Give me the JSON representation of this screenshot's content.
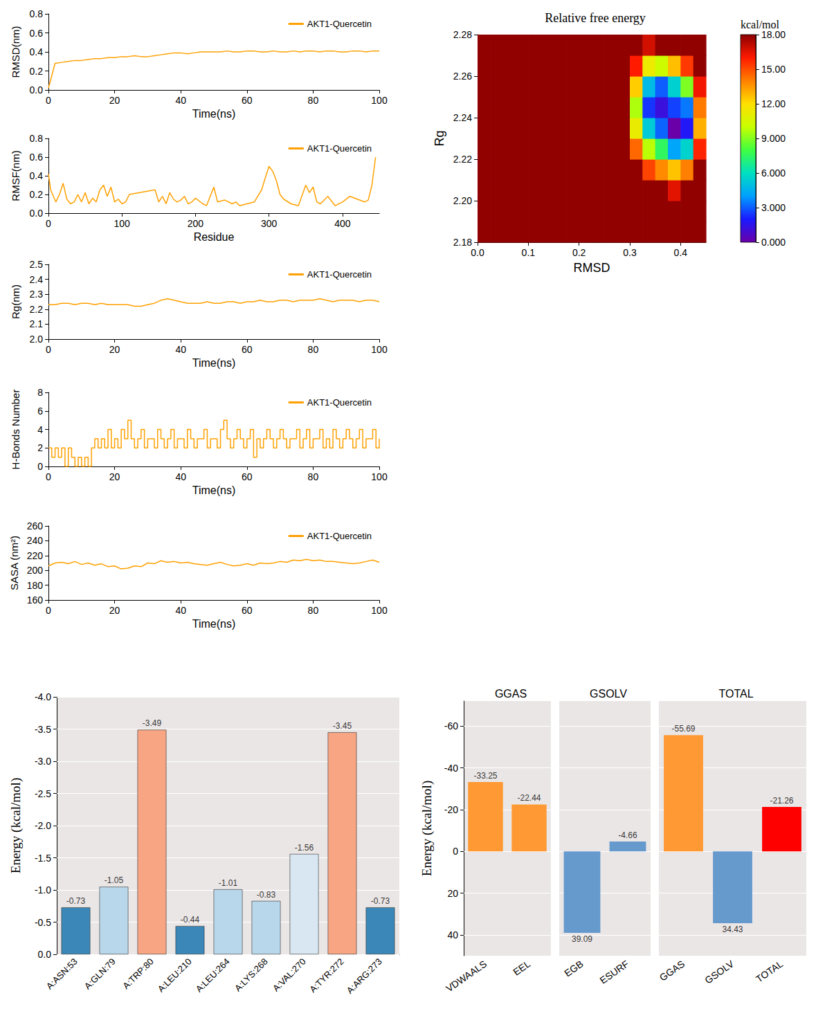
{
  "chart_data": [
    {
      "type": "line",
      "xlabel": "Time(ns)",
      "ylabel": "RMSD(nm)",
      "xlim": [
        0,
        100
      ],
      "xticks": [
        0,
        20,
        40,
        60,
        80,
        100
      ],
      "ylim": [
        0,
        0.8
      ],
      "yticks": [
        {
          "value": 0,
          "label": "0.0"
        },
        0.2,
        0.4,
        0.6,
        0.8
      ],
      "legend": "upper right",
      "x": [
        0,
        2,
        4,
        6,
        8,
        10,
        12,
        14,
        16,
        18,
        20,
        22,
        24,
        26,
        28,
        30,
        32,
        34,
        36,
        38,
        40,
        42,
        44,
        46,
        48,
        50,
        52,
        54,
        56,
        58,
        60,
        62,
        64,
        66,
        68,
        70,
        72,
        74,
        76,
        78,
        80,
        82,
        84,
        86,
        88,
        90,
        92,
        94,
        96,
        98,
        100
      ],
      "series": [
        {
          "name": "AKT1-Quercetin",
          "color": "#FFA000",
          "values": [
            0.02,
            0.28,
            0.29,
            0.3,
            0.31,
            0.31,
            0.32,
            0.33,
            0.33,
            0.34,
            0.34,
            0.35,
            0.35,
            0.36,
            0.35,
            0.35,
            0.36,
            0.37,
            0.38,
            0.39,
            0.39,
            0.38,
            0.39,
            0.4,
            0.4,
            0.4,
            0.4,
            0.41,
            0.4,
            0.4,
            0.41,
            0.41,
            0.4,
            0.4,
            0.41,
            0.4,
            0.4,
            0.41,
            0.4,
            0.41,
            0.41,
            0.4,
            0.41,
            0.41,
            0.4,
            0.4,
            0.41,
            0.41,
            0.4,
            0.41,
            0.41
          ]
        }
      ]
    },
    {
      "type": "line",
      "xlabel": "Residue",
      "ylabel": "RMSF(nm)",
      "xlim": [
        0,
        450
      ],
      "xticks": [
        0,
        100,
        200,
        300,
        400
      ],
      "ylim": [
        0,
        0.8
      ],
      "yticks": [
        {
          "value": 0,
          "label": "0.0"
        },
        0.2,
        0.4,
        0.6,
        0.8
      ],
      "legend": "upper right",
      "x": [
        0,
        3,
        10,
        15,
        20,
        25,
        30,
        35,
        40,
        45,
        50,
        55,
        60,
        65,
        70,
        75,
        80,
        85,
        90,
        95,
        100,
        105,
        110,
        145,
        150,
        155,
        160,
        165,
        170,
        175,
        180,
        185,
        190,
        195,
        200,
        210,
        215,
        225,
        230,
        240,
        250,
        255,
        260,
        270,
        280,
        290,
        295,
        300,
        305,
        310,
        315,
        320,
        330,
        340,
        350,
        355,
        360,
        365,
        370,
        380,
        390,
        400,
        410,
        420,
        430,
        435,
        440,
        445
      ],
      "series": [
        {
          "name": "AKT1-Quercetin",
          "color": "#FFA000",
          "values": [
            0.42,
            0.25,
            0.12,
            0.2,
            0.32,
            0.15,
            0.1,
            0.12,
            0.2,
            0.12,
            0.22,
            0.1,
            0.16,
            0.12,
            0.25,
            0.3,
            0.18,
            0.28,
            0.12,
            0.15,
            0.1,
            0.12,
            0.2,
            0.25,
            0.12,
            0.18,
            0.1,
            0.22,
            0.15,
            0.12,
            0.14,
            0.18,
            0.1,
            0.12,
            0.16,
            0.1,
            0.08,
            0.28,
            0.12,
            0.14,
            0.1,
            0.12,
            0.08,
            0.1,
            0.12,
            0.25,
            0.38,
            0.5,
            0.45,
            0.35,
            0.2,
            0.15,
            0.1,
            0.08,
            0.3,
            0.22,
            0.28,
            0.12,
            0.1,
            0.18,
            0.08,
            0.12,
            0.18,
            0.15,
            0.12,
            0.14,
            0.3,
            0.6
          ]
        }
      ]
    },
    {
      "type": "line",
      "xlabel": "Time(ns)",
      "ylabel": "Rg(nm)",
      "xlim": [
        0,
        100
      ],
      "xticks": [
        0,
        20,
        40,
        60,
        80,
        100
      ],
      "ylim": [
        2.0,
        2.5
      ],
      "yticks": [
        {
          "value": 2,
          "label": "2.0"
        },
        2.1,
        2.2,
        2.3,
        2.4,
        2.5
      ],
      "legend": "upper right",
      "x": [
        0,
        2,
        4,
        6,
        8,
        10,
        12,
        14,
        16,
        18,
        20,
        22,
        24,
        26,
        28,
        30,
        32,
        34,
        36,
        38,
        40,
        42,
        44,
        46,
        48,
        50,
        52,
        54,
        56,
        58,
        60,
        62,
        64,
        66,
        68,
        70,
        72,
        74,
        76,
        78,
        80,
        82,
        84,
        86,
        88,
        90,
        92,
        94,
        96,
        98,
        100
      ],
      "series": [
        {
          "name": "AKT1-Quercetin",
          "color": "#FFA000",
          "values": [
            2.23,
            2.23,
            2.24,
            2.24,
            2.23,
            2.24,
            2.24,
            2.23,
            2.24,
            2.23,
            2.23,
            2.23,
            2.23,
            2.22,
            2.22,
            2.23,
            2.24,
            2.26,
            2.27,
            2.26,
            2.25,
            2.24,
            2.24,
            2.24,
            2.25,
            2.24,
            2.24,
            2.25,
            2.25,
            2.24,
            2.25,
            2.25,
            2.26,
            2.25,
            2.25,
            2.26,
            2.26,
            2.25,
            2.26,
            2.26,
            2.26,
            2.27,
            2.26,
            2.25,
            2.26,
            2.26,
            2.26,
            2.25,
            2.26,
            2.26,
            2.25
          ]
        }
      ]
    },
    {
      "type": "line",
      "line_style": "step",
      "xlabel": "Time(ns)",
      "ylabel": "H-Bonds Number",
      "xlim": [
        0,
        100
      ],
      "xticks": [
        0,
        20,
        40,
        60,
        80,
        100
      ],
      "ylim": [
        0,
        8
      ],
      "yticks": [
        0,
        2,
        4,
        6,
        8
      ],
      "legend": "upper right",
      "x": [
        0,
        1,
        2,
        3,
        4,
        5,
        6,
        7,
        8,
        9,
        10,
        11,
        12,
        13,
        14,
        15,
        16,
        17,
        18,
        19,
        20,
        21,
        22,
        23,
        24,
        25,
        26,
        27,
        28,
        29,
        30,
        31,
        32,
        33,
        34,
        35,
        36,
        37,
        38,
        39,
        40,
        41,
        42,
        43,
        44,
        45,
        46,
        47,
        48,
        49,
        50,
        51,
        52,
        53,
        54,
        55,
        56,
        57,
        58,
        59,
        60,
        61,
        62,
        63,
        64,
        65,
        66,
        67,
        68,
        69,
        70,
        71,
        72,
        73,
        74,
        75,
        76,
        77,
        78,
        79,
        80,
        81,
        82,
        83,
        84,
        85,
        86,
        87,
        88,
        89,
        90,
        91,
        92,
        93,
        94,
        95,
        96,
        97,
        98,
        99,
        100
      ],
      "series": [
        {
          "name": "AKT1-Quercetin",
          "color": "#FFA000",
          "values": [
            2,
            1,
            2,
            1,
            2,
            0,
            2,
            1,
            0,
            1,
            0,
            1,
            0,
            2,
            3,
            2,
            3,
            2,
            4,
            2,
            3,
            2,
            4,
            3,
            5,
            3,
            2,
            3,
            4,
            2,
            3,
            3,
            2,
            4,
            3,
            2,
            3,
            4,
            2,
            3,
            3,
            2,
            4,
            3,
            2,
            3,
            3,
            4,
            2,
            3,
            3,
            2,
            4,
            5,
            3,
            2,
            3,
            4,
            3,
            2,
            3,
            4,
            1,
            3,
            2,
            3,
            4,
            3,
            2,
            3,
            4,
            3,
            2,
            3,
            3,
            4,
            2,
            3,
            4,
            2,
            3,
            3,
            4,
            2,
            3,
            2,
            4,
            3,
            2,
            3,
            4,
            3,
            2,
            3,
            4,
            2,
            3,
            3,
            4,
            2,
            3
          ]
        }
      ]
    },
    {
      "type": "line",
      "xlabel": "Time(ns)",
      "ylabel": "SASA (nm²)",
      "xlim": [
        0,
        100
      ],
      "xticks": [
        0,
        20,
        40,
        60,
        80,
        100
      ],
      "ylim": [
        160,
        260
      ],
      "yticks": [
        160,
        180,
        200,
        220,
        240,
        260
      ],
      "legend": "upper right",
      "x": [
        0,
        2,
        4,
        6,
        8,
        10,
        12,
        14,
        16,
        18,
        20,
        22,
        24,
        26,
        28,
        30,
        32,
        34,
        36,
        38,
        40,
        42,
        44,
        46,
        48,
        50,
        52,
        54,
        56,
        58,
        60,
        62,
        64,
        66,
        68,
        70,
        72,
        74,
        76,
        78,
        80,
        82,
        84,
        86,
        88,
        90,
        92,
        94,
        96,
        98,
        100
      ],
      "series": [
        {
          "name": "AKT1-Quercetin",
          "color": "#FFA000",
          "values": [
            206,
            210,
            211,
            209,
            212,
            208,
            210,
            207,
            209,
            205,
            206,
            202,
            203,
            206,
            205,
            210,
            209,
            213,
            211,
            212,
            210,
            211,
            209,
            208,
            207,
            209,
            211,
            208,
            206,
            207,
            209,
            207,
            210,
            209,
            210,
            212,
            211,
            214,
            213,
            215,
            213,
            214,
            212,
            212,
            211,
            210,
            209,
            210,
            212,
            214,
            211
          ]
        }
      ]
    },
    {
      "type": "heatmap",
      "title": "Relative free energy",
      "xlabel": "RMSD",
      "ylabel": "Rg",
      "xlim": [
        0,
        0.45
      ],
      "xticks": [
        {
          "value": 0,
          "label": "0.0"
        },
        0.1,
        0.2,
        0.3,
        0.4
      ],
      "ylim": [
        2.18,
        2.28
      ],
      "yticks": [
        2.18,
        {
          "value": 2.2,
          "label": "2.20"
        },
        2.22,
        2.24,
        2.26,
        2.28
      ],
      "x_bins": [
        0,
        0.025,
        0.05,
        0.075,
        0.1,
        0.125,
        0.15,
        0.175,
        0.2,
        0.225,
        0.25,
        0.275,
        0.3,
        0.325,
        0.35,
        0.375,
        0.4,
        0.425,
        0.45
      ],
      "y_bins": [
        2.18,
        2.19,
        2.2,
        2.21,
        2.22,
        2.23,
        2.24,
        2.25,
        2.26,
        2.27,
        2.28
      ],
      "energy": [
        [
          17.9,
          17.9,
          17.9,
          17.9,
          17.9,
          17.9,
          17.9,
          17.9,
          17.9,
          17.9,
          17.9,
          17.9,
          17.9,
          17.9,
          17.9,
          17.9,
          17.9,
          17.9
        ],
        [
          17.9,
          17.9,
          17.9,
          17.9,
          17.9,
          17.9,
          17.9,
          17.9,
          17.9,
          17.9,
          17.9,
          17.9,
          17.9,
          17.9,
          17.9,
          17.9,
          17.9,
          17.9
        ],
        [
          17.9,
          17.9,
          17.9,
          17.9,
          17.9,
          17.9,
          17.9,
          17.9,
          17.9,
          17.9,
          17.9,
          17.9,
          17.9,
          17.9,
          17.9,
          16.5,
          17.9,
          17.9
        ],
        [
          17.9,
          17.9,
          17.9,
          17.9,
          17.9,
          17.9,
          17.9,
          17.9,
          17.9,
          17.9,
          17.9,
          17.9,
          17.9,
          15.2,
          13.8,
          12.6,
          14.0,
          17.9
        ],
        [
          17.9,
          17.9,
          17.9,
          17.9,
          17.9,
          17.9,
          17.9,
          17.9,
          17.9,
          17.9,
          17.9,
          17.9,
          14.5,
          9.8,
          7.5,
          4.2,
          5.6,
          15.8
        ],
        [
          17.9,
          17.9,
          17.9,
          17.9,
          17.9,
          17.9,
          17.9,
          17.9,
          17.9,
          17.9,
          17.9,
          17.9,
          11.2,
          5.3,
          3.1,
          0.0,
          1.8,
          13.0
        ],
        [
          17.9,
          17.9,
          17.9,
          17.9,
          17.9,
          17.9,
          17.9,
          17.9,
          17.9,
          17.9,
          17.9,
          17.9,
          9.6,
          2.4,
          1.2,
          2.6,
          3.4,
          14.1
        ],
        [
          17.9,
          17.9,
          17.9,
          17.9,
          17.9,
          17.9,
          17.9,
          17.9,
          17.9,
          17.9,
          17.9,
          17.9,
          12.4,
          4.8,
          3.0,
          5.5,
          8.9,
          16.2
        ],
        [
          17.9,
          17.9,
          17.9,
          17.9,
          17.9,
          17.9,
          17.9,
          17.9,
          17.9,
          17.9,
          17.9,
          17.9,
          16.0,
          11.3,
          10.2,
          12.7,
          15.4,
          17.9
        ],
        [
          17.9,
          17.9,
          17.9,
          17.9,
          17.9,
          17.9,
          17.9,
          17.9,
          17.9,
          17.9,
          17.9,
          17.9,
          17.9,
          16.8,
          17.9,
          17.9,
          17.9,
          17.9
        ]
      ],
      "colorbar": {
        "label": "kcal/mol",
        "lim": [
          0,
          18
        ],
        "ticks": [
          {
            "value": 0,
            "label": "0.000"
          },
          {
            "value": 3,
            "label": "3.000"
          },
          {
            "value": 6,
            "label": "6.000"
          },
          {
            "value": 9,
            "label": "9.000"
          },
          {
            "value": 12,
            "label": "12.00"
          },
          {
            "value": 15,
            "label": "15.00"
          },
          {
            "value": 18,
            "label": "18.00"
          }
        ]
      }
    },
    {
      "type": "bar",
      "ylabel": "Energy (kcal/mol)",
      "categories": [
        "A:ASN:53",
        "A:GLN:79",
        "A:TRP:80",
        "A:LEU:210",
        "A:LEU:264",
        "A:LYS:268",
        "A:VAL:270",
        "A:TYR:272",
        "A:ARG:273"
      ],
      "values": [
        -0.73,
        -1.05,
        -3.49,
        -0.44,
        -1.01,
        -0.83,
        -1.56,
        -3.45,
        -0.73
      ],
      "colors": [
        "#3A87B8",
        "#B9D7EA",
        "#F7A582",
        "#3A87B8",
        "#B9D7EA",
        "#B9D7EA",
        "#D8E7F2",
        "#F7A582",
        "#3A87B8"
      ],
      "ylim": [
        -4,
        0
      ],
      "yticks": [
        {
          "value": -4,
          "label": "-4.0"
        },
        -3.5,
        {
          "value": -3,
          "label": "-3.0"
        },
        -2.5,
        {
          "value": -2,
          "label": "-2.0"
        },
        -1.5,
        {
          "value": -1,
          "label": "-1.0"
        },
        -0.5,
        {
          "value": 0,
          "label": "0.0"
        }
      ],
      "grid": true,
      "data_labels": true
    },
    {
      "type": "bar",
      "ylabel": "Energy (kcal/mol)",
      "ylim": [
        -72,
        50
      ],
      "yticks": [
        -60,
        -40,
        -20,
        0,
        20,
        40
      ],
      "grid": true,
      "data_labels": true,
      "facets": [
        {
          "title": "GGAS",
          "categories": [
            "VDWAALS",
            "EEL"
          ],
          "values": [
            -33.25,
            -22.44
          ],
          "colors": [
            "#FF9933",
            "#FF9933"
          ]
        },
        {
          "title": "GSOLV",
          "categories": [
            "EGB",
            "ESURF"
          ],
          "values": [
            39.09,
            -4.66
          ],
          "colors": [
            "#6699CC",
            "#6699CC"
          ]
        },
        {
          "title": "TOTAL",
          "categories": [
            "GGAS",
            "GSOLV",
            "TOTAL"
          ],
          "values": [
            -55.69,
            34.43,
            -21.26
          ],
          "colors": [
            "#FF9933",
            "#6699CC",
            "#FF0000"
          ]
        }
      ]
    }
  ]
}
